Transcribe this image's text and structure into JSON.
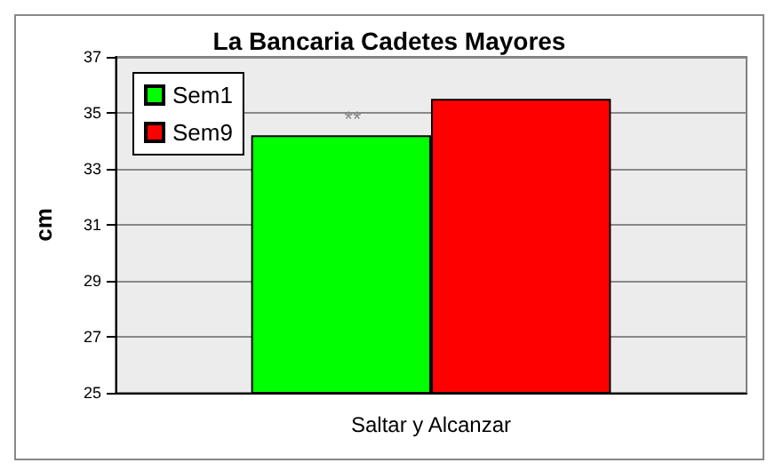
{
  "chart_data": {
    "type": "bar",
    "title": "La Bancaria Cadetes Mayores",
    "ylabel": "cm",
    "categories": [
      "Saltar y Alcanzar"
    ],
    "series": [
      {
        "name": "Sem1",
        "color": "#00ff00",
        "values": [
          34.2
        ]
      },
      {
        "name": "Sem9",
        "color": "#ff0000",
        "values": [
          35.5
        ]
      }
    ],
    "ylim": [
      25,
      37
    ],
    "yticks": [
      25,
      27,
      29,
      31,
      33,
      35,
      37
    ],
    "grid": "y",
    "legend": "top left",
    "annotations": [
      "**"
    ]
  }
}
